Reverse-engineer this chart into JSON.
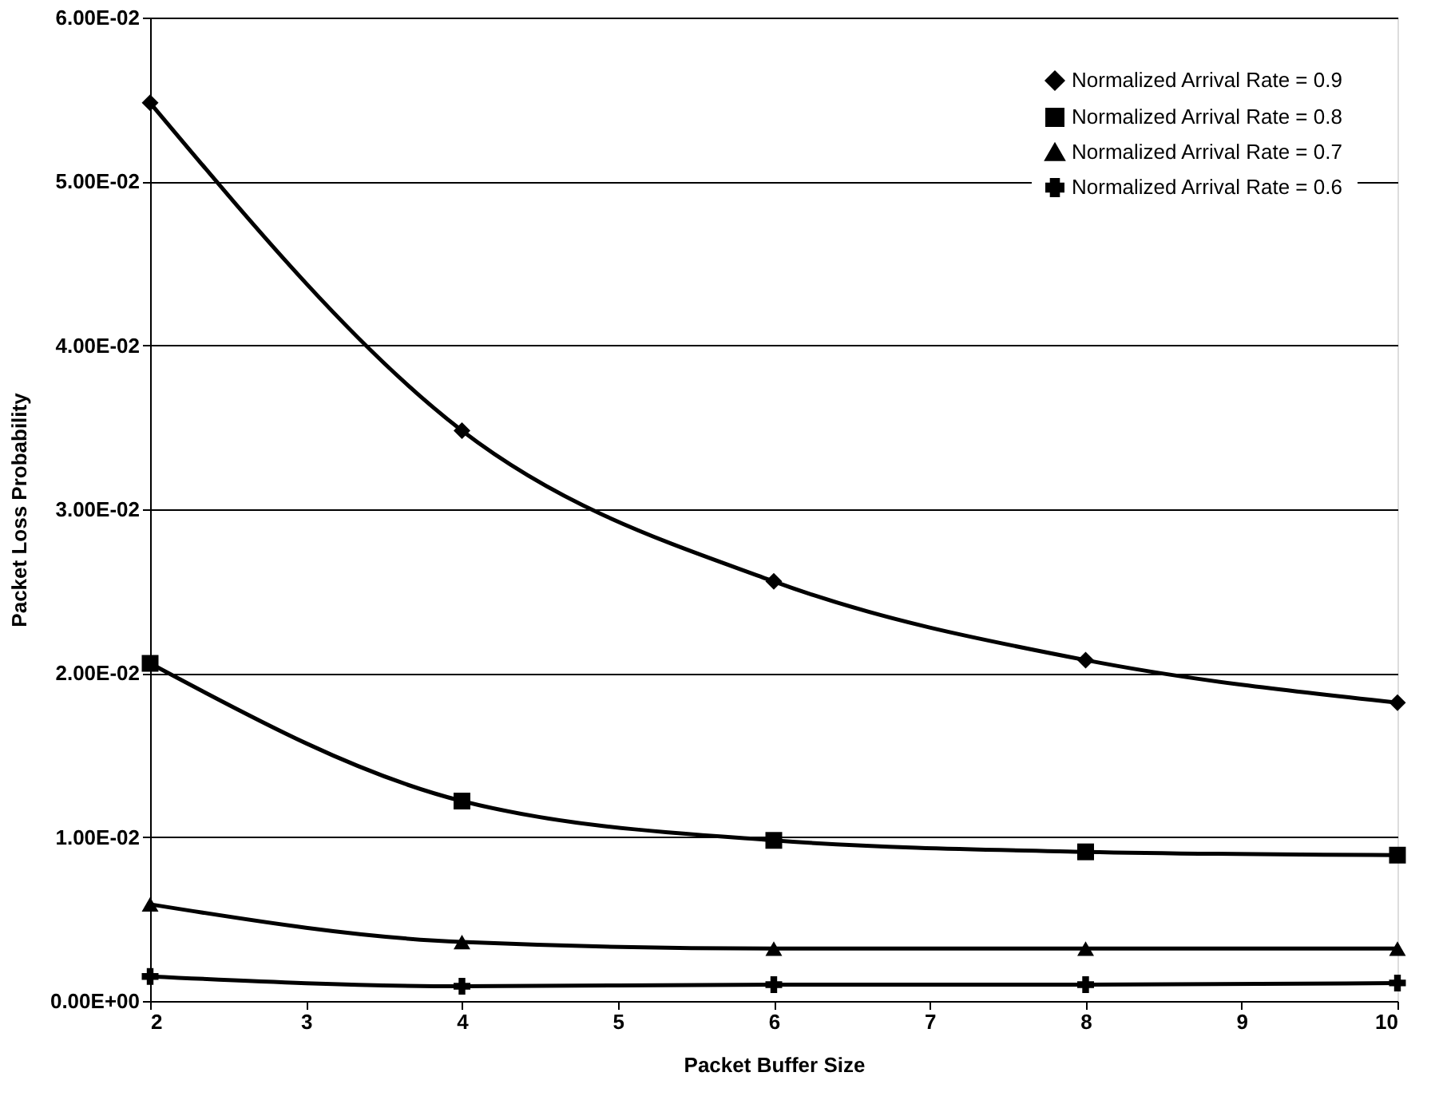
{
  "chart_data": {
    "type": "line",
    "xlabel": "Packet Buffer Size",
    "ylabel": "Packet Loss Probability",
    "x": [
      2,
      4,
      6,
      8,
      10
    ],
    "series": [
      {
        "name": "Normalized Arrival Rate = 0.9",
        "color": "#000000",
        "marker": "diamond",
        "values": [
          0.0548,
          0.0348,
          0.0256,
          0.0208,
          0.0182
        ]
      },
      {
        "name": "Normalized Arrival Rate = 0.8",
        "color": "#000000",
        "marker": "square",
        "values": [
          0.0206,
          0.0122,
          0.0098,
          0.0091,
          0.0089
        ]
      },
      {
        "name": "Normalized Arrival Rate = 0.7",
        "color": "#000000",
        "marker": "triangle",
        "values": [
          0.0059,
          0.0036,
          0.0032,
          0.0032,
          0.0032
        ]
      },
      {
        "name": "Normalized Arrival Rate = 0.6",
        "color": "#000000",
        "marker": "cross",
        "values": [
          0.0015,
          0.0009,
          0.001,
          0.001,
          0.0011
        ]
      }
    ],
    "xlim": [
      2,
      10
    ],
    "xticks": [
      2,
      3,
      4,
      5,
      6,
      7,
      8,
      9,
      10
    ],
    "ylim": [
      0,
      0.06
    ],
    "yticks": [
      {
        "value": 0,
        "label": "0.00E+00"
      },
      {
        "value": 0.01,
        "label": "1.00E-02"
      },
      {
        "value": 0.02,
        "label": "2.00E-02"
      },
      {
        "value": 0.03,
        "label": "3.00E-02"
      },
      {
        "value": 0.04,
        "label": "4.00E-02"
      },
      {
        "value": 0.05,
        "label": "5.00E-02"
      },
      {
        "value": 0.06,
        "label": "6.00E-02"
      }
    ],
    "grid": "y",
    "legend": "top right",
    "line_style": "solid"
  }
}
